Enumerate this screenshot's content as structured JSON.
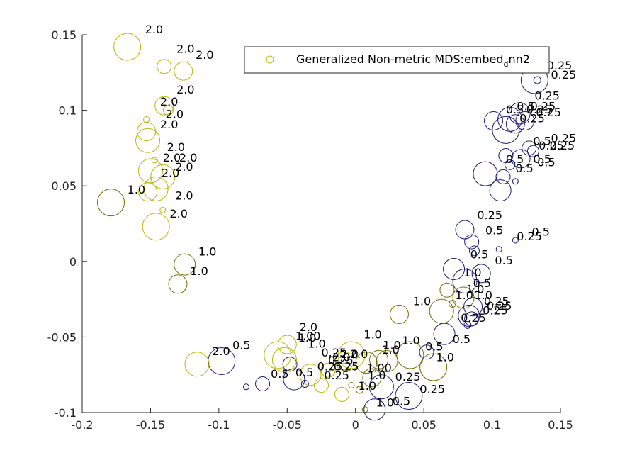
{
  "chart_data": {
    "type": "scatter",
    "title": "",
    "xlabel": "",
    "ylabel": "",
    "xlim": [
      -0.2,
      0.15
    ],
    "ylim": [
      -0.1,
      0.15
    ],
    "xticks": [
      -0.2,
      -0.15,
      -0.1,
      -0.05,
      0,
      0.05,
      0.1,
      0.15
    ],
    "xtick_labels": [
      "-0.2",
      "-0.15",
      "-0.1",
      "-0.05",
      "0",
      "0.05",
      "0.1",
      "0.15"
    ],
    "yticks": [
      -0.1,
      -0.05,
      0,
      0.05,
      0.1,
      0.15
    ],
    "ytick_labels": [
      "-0.1",
      "-0.05",
      "0",
      "0.05",
      "0.1",
      "0.15"
    ],
    "grid": false,
    "legend": {
      "position": "top-right",
      "label_main": "Generalized Non-metric MDS:embed",
      "label_sub": "d",
      "label_tail": "nn2"
    },
    "colors": {
      "olive": "#b8b800",
      "olive_dark": "#707000",
      "navy": "#1a1a80"
    },
    "points": [
      {
        "x": -0.167,
        "y": 0.142,
        "r": 19,
        "c": "olive",
        "label": "2.0"
      },
      {
        "x": -0.14,
        "y": 0.129,
        "r": 10,
        "c": "olive",
        "label": "2.0"
      },
      {
        "x": -0.126,
        "y": 0.126,
        "r": 13,
        "c": "olive",
        "label": "2.0"
      },
      {
        "x": -0.14,
        "y": 0.103,
        "r": 13,
        "c": "olive",
        "label": "2.0"
      },
      {
        "x": -0.137,
        "y": 0.1,
        "r": 7,
        "c": "olive",
        "label": "2.0"
      },
      {
        "x": -0.153,
        "y": 0.094,
        "r": 4,
        "c": "olive",
        "label": "2.0"
      },
      {
        "x": -0.153,
        "y": 0.086,
        "r": 13,
        "c": "olive",
        "label": "2.0"
      },
      {
        "x": -0.152,
        "y": 0.08,
        "r": 17,
        "c": "olive",
        "label": "2.0"
      },
      {
        "x": -0.147,
        "y": 0.067,
        "r": 4,
        "c": "olive",
        "label": "2.0"
      },
      {
        "x": -0.15,
        "y": 0.06,
        "r": 17,
        "c": "olive",
        "label": "2.0"
      },
      {
        "x": -0.141,
        "y": 0.056,
        "r": 17,
        "c": "olive",
        "label": "2.0"
      },
      {
        "x": -0.146,
        "y": 0.048,
        "r": 17,
        "c": "olive",
        "label": "2.0"
      },
      {
        "x": -0.152,
        "y": 0.046,
        "r": 13,
        "c": "olive",
        "label": "2.0"
      },
      {
        "x": -0.141,
        "y": 0.034,
        "r": 4,
        "c": "olive",
        "label": "2.0"
      },
      {
        "x": -0.146,
        "y": 0.023,
        "r": 19,
        "c": "olive",
        "label": "2.0"
      },
      {
        "x": -0.179,
        "y": 0.039,
        "r": 19,
        "c": "olive_dark",
        "label": "1.0"
      },
      {
        "x": -0.125,
        "y": -0.002,
        "r": 15,
        "c": "olive_dark",
        "label": "1.0"
      },
      {
        "x": -0.13,
        "y": -0.015,
        "r": 13,
        "c": "olive_dark",
        "label": "1.0"
      },
      {
        "x": 0.131,
        "y": 0.12,
        "r": 19,
        "c": "navy",
        "label": "0.25"
      },
      {
        "x": 0.133,
        "y": 0.12,
        "r": 5,
        "c": "navy",
        "label": "0.25"
      },
      {
        "x": 0.101,
        "y": 0.093,
        "r": 13,
        "c": "navy",
        "label": "0.5"
      },
      {
        "x": 0.113,
        "y": 0.094,
        "r": 17,
        "c": "navy",
        "label": "0.5"
      },
      {
        "x": 0.12,
        "y": 0.098,
        "r": 15,
        "c": "navy",
        "label": "0.25"
      },
      {
        "x": 0.117,
        "y": 0.091,
        "r": 13,
        "c": "navy",
        "label": "0.25"
      },
      {
        "x": 0.11,
        "y": 0.087,
        "r": 19,
        "c": "navy",
        "label": "0.25"
      },
      {
        "x": 0.124,
        "y": 0.093,
        "r": 13,
        "c": "navy",
        "label": "0.25"
      },
      {
        "x": 0.11,
        "y": 0.07,
        "r": 10,
        "c": "navy",
        "label": "0.5"
      },
      {
        "x": 0.121,
        "y": 0.068,
        "r": 13,
        "c": "navy",
        "label": "0.25"
      },
      {
        "x": 0.127,
        "y": 0.075,
        "r": 10,
        "c": "navy",
        "label": "0.25"
      },
      {
        "x": 0.13,
        "y": 0.073,
        "r": 8,
        "c": "navy",
        "label": "0.25"
      },
      {
        "x": 0.113,
        "y": 0.064,
        "r": 7,
        "c": "navy",
        "label": "0.5"
      },
      {
        "x": 0.095,
        "y": 0.058,
        "r": 17,
        "c": "navy",
        "label": "0.5"
      },
      {
        "x": 0.108,
        "y": 0.056,
        "r": 10,
        "c": "navy",
        "label": "0.5"
      },
      {
        "x": 0.106,
        "y": 0.047,
        "r": 15,
        "c": "navy",
        "label": "0.5"
      },
      {
        "x": 0.117,
        "y": 0.053,
        "r": 4,
        "c": "navy",
        "label": "0.5"
      },
      {
        "x": 0.08,
        "y": 0.021,
        "r": 13,
        "c": "navy",
        "label": "0.25"
      },
      {
        "x": 0.085,
        "y": 0.013,
        "r": 10,
        "c": "navy",
        "label": "0.5"
      },
      {
        "x": 0.087,
        "y": 0.007,
        "r": 7,
        "c": "navy",
        "label": "0.5"
      },
      {
        "x": 0.117,
        "y": 0.014,
        "r": 4,
        "c": "navy",
        "label": "0.25"
      },
      {
        "x": 0.105,
        "y": 0.008,
        "r": 4,
        "c": "navy",
        "label": "0.5"
      },
      {
        "x": 0.072,
        "y": -0.005,
        "r": 15,
        "c": "navy",
        "label": "0.5"
      },
      {
        "x": 0.092,
        "y": -0.008,
        "r": 13,
        "c": "navy",
        "label": "0.5"
      },
      {
        "x": 0.08,
        "y": -0.013,
        "r": 17,
        "c": "navy",
        "label": "0.5"
      },
      {
        "x": 0.067,
        "y": -0.019,
        "r": 10,
        "c": "olive_dark",
        "label": "1.0"
      },
      {
        "x": 0.071,
        "y": -0.028,
        "r": 5,
        "c": "olive_dark",
        "label": "1.0"
      },
      {
        "x": 0.079,
        "y": -0.024,
        "r": 15,
        "c": "olive_dark",
        "label": "1.0"
      },
      {
        "x": 0.086,
        "y": -0.03,
        "r": 13,
        "c": "navy",
        "label": "0.25"
      },
      {
        "x": 0.083,
        "y": -0.036,
        "r": 15,
        "c": "navy",
        "label": "0.25"
      },
      {
        "x": 0.085,
        "y": -0.038,
        "r": 10,
        "c": "navy",
        "label": "0.25"
      },
      {
        "x": 0.082,
        "y": -0.042,
        "r": 5,
        "c": "navy",
        "label": "0.25"
      },
      {
        "x": 0.032,
        "y": -0.035,
        "r": 13,
        "c": "olive_dark",
        "label": "1.0"
      },
      {
        "x": 0.063,
        "y": -0.033,
        "r": 17,
        "c": "olive_dark",
        "label": "1.0"
      },
      {
        "x": 0.065,
        "y": -0.048,
        "r": 15,
        "c": "navy",
        "label": "0.5"
      },
      {
        "x": 0.052,
        "y": -0.06,
        "r": 10,
        "c": "navy",
        "label": "0.5"
      },
      {
        "x": 0.057,
        "y": -0.07,
        "r": 19,
        "c": "olive_dark",
        "label": "1.0"
      },
      {
        "x": 0.04,
        "y": -0.062,
        "r": 19,
        "c": "olive_dark",
        "label": "1.0"
      },
      {
        "x": 0.023,
        "y": -0.066,
        "r": 15,
        "c": "olive_dark",
        "label": "1.0"
      },
      {
        "x": 0.017,
        "y": -0.065,
        "r": 13,
        "c": "olive_dark",
        "label": "1.0"
      },
      {
        "x": 0.008,
        "y": -0.067,
        "r": 15,
        "c": "olive_dark",
        "label": "1.0"
      },
      {
        "x": 0.012,
        "y": -0.077,
        "r": 13,
        "c": "olive_dark",
        "label": "1.0"
      },
      {
        "x": 0.019,
        "y": -0.083,
        "r": 17,
        "c": "navy",
        "label": "0.25"
      },
      {
        "x": 0.039,
        "y": -0.089,
        "r": 19,
        "c": "navy",
        "label": "0.25"
      },
      {
        "x": 0.014,
        "y": -0.098,
        "r": 15,
        "c": "navy",
        "label": "0.5"
      },
      {
        "x": 0.007,
        "y": -0.098,
        "r": 4,
        "c": "olive_dark",
        "label": "1.0"
      },
      {
        "x": 0.003,
        "y": -0.085,
        "r": 5,
        "c": "olive_dark",
        "label": "1.0"
      },
      {
        "x": -0.003,
        "y": -0.082,
        "r": 4,
        "c": "olive_dark",
        "label": "1.0"
      },
      {
        "x": -0.008,
        "y": -0.066,
        "r": 13,
        "c": "olive",
        "label": "2.0"
      },
      {
        "x": -0.01,
        "y": -0.088,
        "r": 10,
        "c": "olive",
        "label": "2.0"
      },
      {
        "x": -0.025,
        "y": -0.082,
        "r": 10,
        "c": "olive",
        "label": "0.25"
      },
      {
        "x": -0.033,
        "y": -0.075,
        "r": 15,
        "c": "olive",
        "label": "0.25"
      },
      {
        "x": -0.037,
        "y": -0.081,
        "r": 5,
        "c": "navy",
        "label": "0.25"
      },
      {
        "x": -0.045,
        "y": -0.078,
        "r": 15,
        "c": "navy",
        "label": "0.5"
      },
      {
        "x": -0.048,
        "y": -0.068,
        "r": 10,
        "c": "navy",
        "label": "0.5"
      },
      {
        "x": -0.05,
        "y": -0.055,
        "r": 13,
        "c": "olive",
        "label": "2.0"
      },
      {
        "x": -0.052,
        "y": -0.065,
        "r": 17,
        "c": "olive",
        "label": "1.0"
      },
      {
        "x": -0.057,
        "y": -0.062,
        "r": 19,
        "c": "olive",
        "label": "1.0"
      },
      {
        "x": -0.068,
        "y": -0.081,
        "r": 10,
        "c": "navy",
        "label": "0.5"
      },
      {
        "x": -0.08,
        "y": -0.083,
        "r": 4,
        "c": "navy",
        "label": "0.5"
      },
      {
        "x": -0.098,
        "y": -0.066,
        "r": 19,
        "c": "navy",
        "label": "0.5"
      },
      {
        "x": -0.116,
        "y": -0.068,
        "r": 17,
        "c": "olive",
        "label": "2.0"
      },
      {
        "x": -0.003,
        "y": -0.062,
        "r": 19,
        "c": "olive",
        "label": "2.0"
      },
      {
        "x": -0.02,
        "y": -0.072,
        "r": 10,
        "c": "olive",
        "label": "0.25"
      }
    ],
    "labels": [
      {
        "x": -0.154,
        "y": 0.151,
        "text": "2.0"
      },
      {
        "x": -0.131,
        "y": 0.138,
        "text": "2.0"
      },
      {
        "x": -0.117,
        "y": 0.134,
        "text": "2.0"
      },
      {
        "x": -0.131,
        "y": 0.111,
        "text": "2.0"
      },
      {
        "x": -0.143,
        "y": 0.103,
        "text": "2.0"
      },
      {
        "x": -0.139,
        "y": 0.095,
        "text": "2.0"
      },
      {
        "x": -0.143,
        "y": 0.088,
        "text": "2.0"
      },
      {
        "x": -0.138,
        "y": 0.073,
        "text": "2.0"
      },
      {
        "x": -0.141,
        "y": 0.066,
        "text": "2.0"
      },
      {
        "x": -0.129,
        "y": 0.066,
        "text": "2.0"
      },
      {
        "x": -0.132,
        "y": 0.06,
        "text": "2.0"
      },
      {
        "x": -0.142,
        "y": 0.056,
        "text": "2.0"
      },
      {
        "x": -0.132,
        "y": 0.041,
        "text": "2.0"
      },
      {
        "x": -0.136,
        "y": 0.029,
        "text": "2.0"
      },
      {
        "x": -0.167,
        "y": 0.045,
        "text": "1.0"
      },
      {
        "x": -0.115,
        "y": 0.004,
        "text": "1.0"
      },
      {
        "x": -0.121,
        "y": -0.009,
        "text": "1.0"
      },
      {
        "x": 0.14,
        "y": 0.127,
        "text": "0.25"
      },
      {
        "x": 0.143,
        "y": 0.121,
        "text": "0.25"
      },
      {
        "x": 0.131,
        "y": 0.107,
        "text": "0.25"
      },
      {
        "x": 0.128,
        "y": 0.1,
        "text": "0.25"
      },
      {
        "x": 0.118,
        "y": 0.1,
        "text": "0.5"
      },
      {
        "x": 0.11,
        "y": 0.098,
        "text": "0.5"
      },
      {
        "x": 0.125,
        "y": 0.098,
        "text": "0.25"
      },
      {
        "x": 0.132,
        "y": 0.096,
        "text": "0.25"
      },
      {
        "x": 0.12,
        "y": 0.092,
        "text": "0.25"
      },
      {
        "x": 0.143,
        "y": 0.079,
        "text": "0.25"
      },
      {
        "x": 0.13,
        "y": 0.077,
        "text": "0.5"
      },
      {
        "x": 0.134,
        "y": 0.074,
        "text": "0.25"
      },
      {
        "x": 0.142,
        "y": 0.074,
        "text": "0.25"
      },
      {
        "x": 0.13,
        "y": 0.065,
        "text": "0.5"
      },
      {
        "x": 0.11,
        "y": 0.065,
        "text": "0.5"
      },
      {
        "x": 0.133,
        "y": 0.063,
        "text": "0.5"
      },
      {
        "x": 0.117,
        "y": 0.059,
        "text": "0.5"
      },
      {
        "x": 0.089,
        "y": 0.028,
        "text": "0.25"
      },
      {
        "x": 0.095,
        "y": 0.018,
        "text": "0.5"
      },
      {
        "x": 0.118,
        "y": 0.014,
        "text": "0.25"
      },
      {
        "x": 0.129,
        "y": 0.017,
        "text": "0.5"
      },
      {
        "x": 0.084,
        "y": 0.002,
        "text": "0.5"
      },
      {
        "x": 0.102,
        "y": -0.002,
        "text": "0.5"
      },
      {
        "x": 0.079,
        "y": -0.01,
        "text": "1.0"
      },
      {
        "x": 0.086,
        "y": -0.017,
        "text": "0.5"
      },
      {
        "x": 0.081,
        "y": -0.021,
        "text": "1.0"
      },
      {
        "x": 0.087,
        "y": -0.025,
        "text": "1.0"
      },
      {
        "x": 0.073,
        "y": -0.025,
        "text": "1.0"
      },
      {
        "x": 0.094,
        "y": -0.029,
        "text": "0.25"
      },
      {
        "x": 0.096,
        "y": -0.032,
        "text": "0.25"
      },
      {
        "x": 0.093,
        "y": -0.035,
        "text": "0.25"
      },
      {
        "x": 0.077,
        "y": -0.04,
        "text": "0.25"
      },
      {
        "x": 0.042,
        "y": -0.029,
        "text": "1.0"
      },
      {
        "x": 0.071,
        "y": -0.054,
        "text": "0.5"
      },
      {
        "x": 0.059,
        "y": -0.066,
        "text": "1.0"
      },
      {
        "x": 0.051,
        "y": -0.059,
        "text": "0.5"
      },
      {
        "x": 0.034,
        "y": -0.055,
        "text": "1.0"
      },
      {
        "x": 0.02,
        "y": -0.058,
        "text": "1.0"
      },
      {
        "x": 0.019,
        "y": -0.061,
        "text": "1.0"
      },
      {
        "x": 0.006,
        "y": -0.051,
        "text": "1.0"
      },
      {
        "x": 0.009,
        "y": -0.078,
        "text": "1.0"
      },
      {
        "x": 0.029,
        "y": -0.079,
        "text": "0.25"
      },
      {
        "x": 0.047,
        "y": -0.087,
        "text": "0.25"
      },
      {
        "x": 0.027,
        "y": -0.095,
        "text": "0.5"
      },
      {
        "x": 0.015,
        "y": -0.096,
        "text": "1.0"
      },
      {
        "x": 0.002,
        "y": -0.085,
        "text": "1.0"
      },
      {
        "x": 0.008,
        "y": -0.073,
        "text": "1.00"
      },
      {
        "x": -0.011,
        "y": -0.064,
        "text": "2.0"
      },
      {
        "x": -0.004,
        "y": -0.064,
        "text": "2.0"
      },
      {
        "x": -0.017,
        "y": -0.066,
        "text": "2.0"
      },
      {
        "x": -0.02,
        "y": -0.068,
        "text": "0.25"
      },
      {
        "x": -0.016,
        "y": -0.072,
        "text": "0.25"
      },
      {
        "x": -0.028,
        "y": -0.072,
        "text": "0.25"
      },
      {
        "x": -0.023,
        "y": -0.078,
        "text": "0.25"
      },
      {
        "x": -0.025,
        "y": -0.063,
        "text": "0.25"
      },
      {
        "x": -0.035,
        "y": -0.057,
        "text": "1.0"
      },
      {
        "x": -0.042,
        "y": -0.053,
        "text": "1.0"
      },
      {
        "x": -0.044,
        "y": -0.052,
        "text": "1.00"
      },
      {
        "x": -0.041,
        "y": -0.046,
        "text": "2.0"
      },
      {
        "x": -0.044,
        "y": -0.076,
        "text": "0.5"
      },
      {
        "x": -0.062,
        "y": -0.077,
        "text": "0.5"
      },
      {
        "x": -0.09,
        "y": -0.058,
        "text": "0.5"
      },
      {
        "x": -0.105,
        "y": -0.062,
        "text": "2.0"
      }
    ]
  }
}
